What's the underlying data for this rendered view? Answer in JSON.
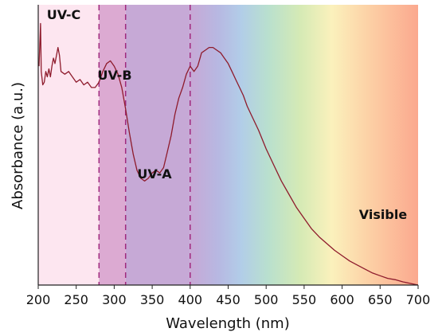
{
  "chart_data": {
    "type": "line",
    "title": "",
    "xlabel": "Wavelength (nm)",
    "ylabel": "Absorbance (a.u.)",
    "xlim": [
      200,
      700
    ],
    "ylim": [
      0,
      1.05
    ],
    "x_ticks": [
      "200",
      "250",
      "300",
      "350",
      "400",
      "450",
      "500",
      "550",
      "600",
      "650",
      "700"
    ],
    "show_y_ticks": false,
    "grid": false,
    "line_color": "#8e1b2c",
    "regions": [
      {
        "label": "UV-C",
        "range": [
          200,
          280
        ],
        "color": "#fde6f0"
      },
      {
        "label": "UV-B",
        "range": [
          280,
          315
        ],
        "color": "#dcaad2"
      },
      {
        "label": "UV-A",
        "range": [
          315,
          400
        ],
        "color": "#c6a9d6"
      },
      {
        "label": "Visible",
        "range": [
          400,
          700
        ]
      }
    ],
    "boundaries": [
      280,
      315,
      400
    ],
    "series": [
      {
        "x": [
          201,
          203,
          204,
          206,
          208,
          210,
          212,
          214,
          216,
          218,
          220,
          222,
          224,
          226,
          228,
          230,
          235,
          240,
          245,
          250,
          255,
          260,
          265,
          270,
          275,
          280,
          285,
          290,
          295,
          300,
          305,
          310,
          315,
          320,
          325,
          330,
          335,
          340,
          345,
          350,
          355,
          360,
          365,
          370,
          375,
          380,
          385,
          390,
          395,
          400,
          405,
          410,
          415,
          420,
          425,
          430,
          435,
          440,
          445,
          450,
          455,
          460,
          465,
          470,
          475,
          480,
          490,
          500,
          510,
          520,
          530,
          540,
          550,
          560,
          570,
          580,
          590,
          600,
          610,
          620,
          630,
          640,
          650,
          660,
          670,
          680,
          690,
          700
        ],
        "y": [
          0.82,
          0.98,
          0.8,
          0.75,
          0.76,
          0.8,
          0.78,
          0.81,
          0.78,
          0.82,
          0.85,
          0.83,
          0.86,
          0.89,
          0.86,
          0.8,
          0.79,
          0.8,
          0.78,
          0.76,
          0.77,
          0.75,
          0.76,
          0.74,
          0.74,
          0.76,
          0.8,
          0.83,
          0.84,
          0.82,
          0.79,
          0.74,
          0.66,
          0.57,
          0.49,
          0.43,
          0.4,
          0.39,
          0.4,
          0.42,
          0.43,
          0.42,
          0.44,
          0.5,
          0.56,
          0.64,
          0.7,
          0.74,
          0.79,
          0.82,
          0.8,
          0.82,
          0.87,
          0.88,
          0.89,
          0.89,
          0.88,
          0.87,
          0.85,
          0.83,
          0.8,
          0.77,
          0.74,
          0.71,
          0.67,
          0.64,
          0.58,
          0.51,
          0.45,
          0.39,
          0.34,
          0.29,
          0.25,
          0.21,
          0.18,
          0.155,
          0.13,
          0.11,
          0.09,
          0.075,
          0.06,
          0.045,
          0.035,
          0.025,
          0.02,
          0.012,
          0.006,
          0.0
        ]
      }
    ]
  }
}
